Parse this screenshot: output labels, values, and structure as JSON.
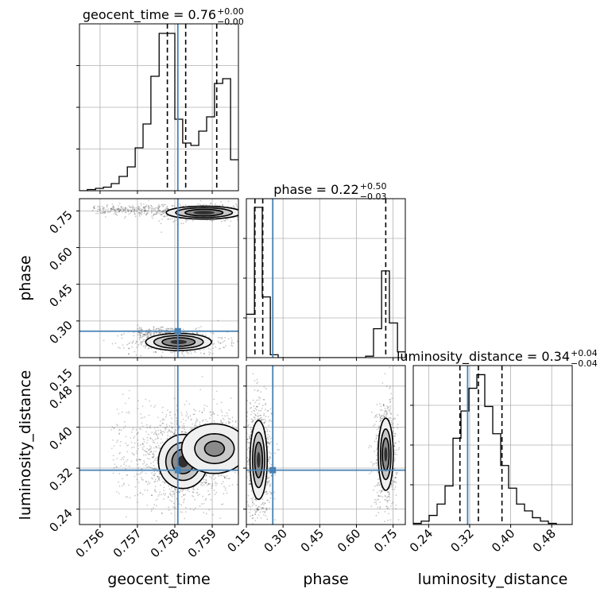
{
  "chart_data": {
    "type": "corner",
    "parameters": [
      "geocent_time",
      "phase",
      "luminosity_distance"
    ],
    "truth_color": "#4682b4",
    "truths": {
      "geocent_time": 0.75808,
      "phase": 0.258,
      "luminosity_distance": 0.316
    },
    "panels": [
      {
        "kind": "histogram",
        "parameter": "geocent_time",
        "title": "geocent_time = 0.76",
        "title_sup": "+0.00",
        "title_sub": "−0.00",
        "xlim": [
          0.75545,
          0.7597
        ],
        "ylim": [
          0,
          70
        ],
        "bin_edges": [
          0.75545,
          0.75566,
          0.75588,
          0.75609,
          0.7563,
          0.75651,
          0.75673,
          0.75694,
          0.75715,
          0.75736,
          0.75758,
          0.75779,
          0.758,
          0.75821,
          0.75843,
          0.75864,
          0.75885,
          0.75906,
          0.75928,
          0.75949,
          0.7597
        ],
        "counts": [
          0,
          0.5,
          1,
          1.5,
          3,
          6,
          10,
          18,
          28,
          48,
          66,
          66,
          30,
          20,
          19,
          25,
          31,
          45,
          47,
          13
        ],
        "quantiles": [
          0.7578,
          0.75829,
          0.75912
        ]
      },
      {
        "kind": "contour",
        "x": "geocent_time",
        "y": "phase",
        "xlim": [
          0.75545,
          0.7597
        ],
        "ylim": [
          0.15,
          0.8
        ],
        "blobs": [
          {
            "cx": 0.75878,
            "cy": 0.743,
            "sx": 0.00046,
            "sy": 0.012,
            "n": 450,
            "levels": [
              1,
              0.75,
              0.5,
              0.28
            ]
          },
          {
            "cx": 0.7581,
            "cy": 0.214,
            "sx": 0.0004,
            "sy": 0.016,
            "n": 550,
            "levels": [
              1,
              0.75,
              0.5,
              0.25
            ]
          }
        ],
        "tails": [
          {
            "x0": 0.7558,
            "x1": 0.758,
            "cy": 0.755,
            "sy": 0.012,
            "n": 260
          },
          {
            "x0": 0.757,
            "x1": 0.758,
            "cy": 0.255,
            "sy": 0.012,
            "n": 140
          }
        ]
      },
      {
        "kind": "histogram",
        "parameter": "phase",
        "title": "phase = 0.22",
        "title_sup": "+0.50",
        "title_sub": "−0.03",
        "xlim": [
          0.15,
          0.8
        ],
        "ylim": [
          0,
          55
        ],
        "bin_edges": [
          0.15,
          0.183,
          0.215,
          0.248,
          0.28,
          0.313,
          0.345,
          0.378,
          0.41,
          0.443,
          0.475,
          0.508,
          0.54,
          0.573,
          0.605,
          0.638,
          0.67,
          0.703,
          0.735,
          0.768,
          0.8
        ],
        "counts": [
          15,
          52,
          21,
          1,
          0,
          0,
          0,
          0,
          0,
          0,
          0,
          0,
          0,
          0,
          0,
          0.5,
          10,
          30,
          12,
          2
        ],
        "quantiles": [
          0.185,
          0.217,
          0.72
        ]
      },
      {
        "kind": "contour",
        "x": "geocent_time",
        "y": "luminosity_distance",
        "xlim": [
          0.75545,
          0.7597
        ],
        "ylim": [
          0.21,
          0.52
        ],
        "blobs": [
          {
            "cx": 0.75822,
            "cy": 0.333,
            "sx": 0.0003,
            "sy": 0.024,
            "n": 900,
            "levels": [
              1,
              0.7,
              0.45,
              0.22
            ]
          },
          {
            "cx": 0.75906,
            "cy": 0.358,
            "sx": 0.0004,
            "sy": 0.022,
            "n": 500,
            "levels": [
              1,
              0.6,
              0.3
            ]
          }
        ],
        "tails": [
          {
            "x0": 0.7563,
            "x1": 0.7594,
            "cy": 0.35,
            "sy": 0.05,
            "n": 500
          }
        ]
      },
      {
        "kind": "contour",
        "x": "phase",
        "y": "luminosity_distance",
        "xlim": [
          0.15,
          0.8
        ],
        "ylim": [
          0.21,
          0.52
        ],
        "blobs": [
          {
            "cx": 0.2,
            "cy": 0.336,
            "sx": 0.016,
            "sy": 0.035,
            "n": 900,
            "levels": [
              1,
              0.7,
              0.45,
              0.2
            ]
          },
          {
            "cx": 0.72,
            "cy": 0.347,
            "sx": 0.014,
            "sy": 0.032,
            "n": 700,
            "levels": [
              1,
              0.7,
              0.45,
              0.2
            ]
          }
        ],
        "tails": []
      },
      {
        "kind": "histogram",
        "parameter": "luminosity_distance",
        "title": "luminosity_distance = 0.34",
        "title_sup": "+0.04",
        "title_sub": "−0.04",
        "xlim": [
          0.21,
          0.52
        ],
        "ylim": [
          0,
          70
        ],
        "bin_edges": [
          0.21,
          0.2255,
          0.241,
          0.2565,
          0.272,
          0.2875,
          0.303,
          0.3185,
          0.334,
          0.3495,
          0.365,
          0.3805,
          0.396,
          0.4115,
          0.427,
          0.4425,
          0.458,
          0.4735,
          0.489,
          0.5045,
          0.52
        ],
        "counts": [
          0.5,
          1.5,
          4,
          9,
          17,
          38,
          50,
          60,
          66,
          52,
          40,
          26,
          16,
          9,
          6,
          3,
          1.5,
          0.5,
          0,
          0
        ],
        "quantiles": [
          0.301,
          0.337,
          0.383
        ]
      }
    ],
    "ticks": {
      "geocent_time": {
        "values": [
          0.756,
          0.757,
          0.758,
          0.759
        ],
        "labels": [
          "0.756",
          "0.757",
          "0.758",
          "0.759"
        ]
      },
      "phase_y": {
        "values": [
          0.3,
          0.45,
          0.6,
          0.75
        ],
        "labels": [
          "0.30",
          "0.45",
          "0.60",
          "0.75"
        ]
      },
      "phase_x": {
        "values": [
          0.15,
          0.3,
          0.45,
          0.6,
          0.75
        ],
        "labels": [
          "0.15",
          "0.30",
          "0.45",
          "0.60",
          "0.75"
        ]
      },
      "luminosity_distance": {
        "values": [
          0.24,
          0.32,
          0.4,
          0.48
        ],
        "labels": [
          "0.24",
          "0.32",
          "0.40",
          "0.48"
        ]
      }
    },
    "bottom_tick_label_phase_left": "0.15",
    "axis_labels": {
      "geocent_time": "geocent_time",
      "phase": "phase",
      "luminosity_distance": "luminosity_distance"
    }
  }
}
